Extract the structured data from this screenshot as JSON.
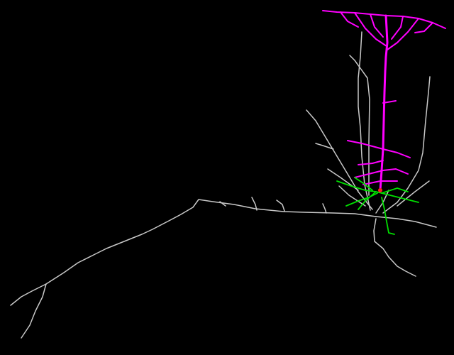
{
  "scene": {
    "background": "#000000",
    "colors": {
      "axon": "#c8c8c8",
      "apical_dendrite": "#ff00ff",
      "basal_dendrite": "#00e000",
      "soma": "#ff2020"
    }
  }
}
